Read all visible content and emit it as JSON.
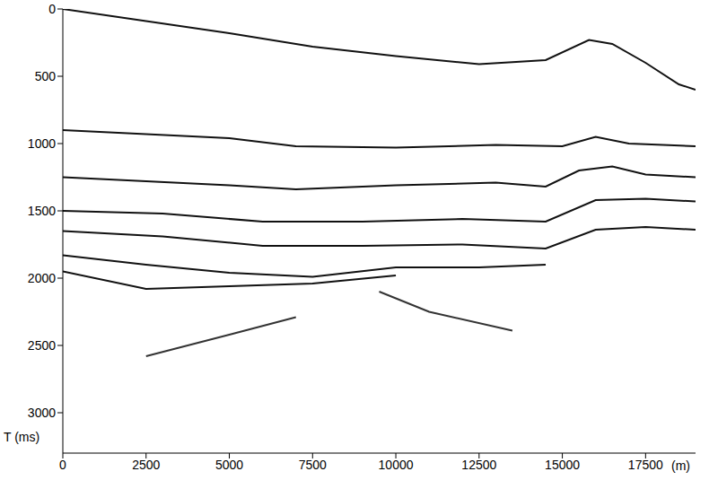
{
  "chart_data": {
    "type": "line",
    "x_label": "(m)",
    "y_label": "T (ms)",
    "xlim": [
      0,
      19000
    ],
    "xticks": [
      0,
      2500,
      5000,
      7500,
      10000,
      12500,
      15000,
      17500
    ],
    "ylim": [
      0,
      3300
    ],
    "yticks": [
      0,
      500,
      1000,
      1500,
      2000,
      2500,
      3000
    ],
    "grid": false,
    "series": [
      {
        "color": "#111111",
        "x": [
          0,
          2500,
          5000,
          7500,
          10000,
          12500,
          14500,
          15800,
          16500,
          17500,
          18500,
          19000
        ],
        "values": [
          0,
          90,
          180,
          280,
          350,
          410,
          380,
          230,
          260,
          400,
          560,
          600
        ]
      },
      {
        "color": "#111111",
        "x": [
          0,
          5000,
          7000,
          10000,
          13000,
          15000,
          16000,
          17000,
          19000
        ],
        "values": [
          900,
          960,
          1020,
          1030,
          1010,
          1020,
          950,
          1000,
          1020
        ]
      },
      {
        "color": "#111111",
        "x": [
          0,
          5000,
          7000,
          10000,
          13000,
          14500,
          15500,
          16500,
          17500,
          19000
        ],
        "values": [
          1250,
          1310,
          1340,
          1310,
          1290,
          1320,
          1200,
          1170,
          1230,
          1250
        ]
      },
      {
        "color": "#111111",
        "x": [
          0,
          3000,
          6000,
          9000,
          12000,
          14500,
          16000,
          17500,
          19000
        ],
        "values": [
          1500,
          1520,
          1580,
          1580,
          1560,
          1580,
          1420,
          1410,
          1430
        ]
      },
      {
        "color": "#111111",
        "x": [
          0,
          3000,
          6000,
          9000,
          12000,
          14500,
          16000,
          17500,
          19000
        ],
        "values": [
          1650,
          1690,
          1760,
          1760,
          1750,
          1780,
          1640,
          1620,
          1640
        ]
      },
      {
        "color": "#111111",
        "x": [
          0,
          2500,
          5000,
          7500,
          10000,
          12500,
          14500
        ],
        "values": [
          1830,
          1900,
          1960,
          1990,
          1920,
          1920,
          1900
        ]
      },
      {
        "color": "#111111",
        "x": [
          0,
          2500,
          5000,
          7500,
          10000
        ],
        "values": [
          1950,
          2080,
          2060,
          2040,
          1980
        ]
      },
      {
        "color": "#333333",
        "x": [
          9500,
          11000,
          13500
        ],
        "values": [
          2100,
          2250,
          2390
        ]
      },
      {
        "color": "#333333",
        "x": [
          2500,
          5000,
          7000
        ],
        "values": [
          2580,
          2420,
          2290
        ]
      }
    ]
  }
}
